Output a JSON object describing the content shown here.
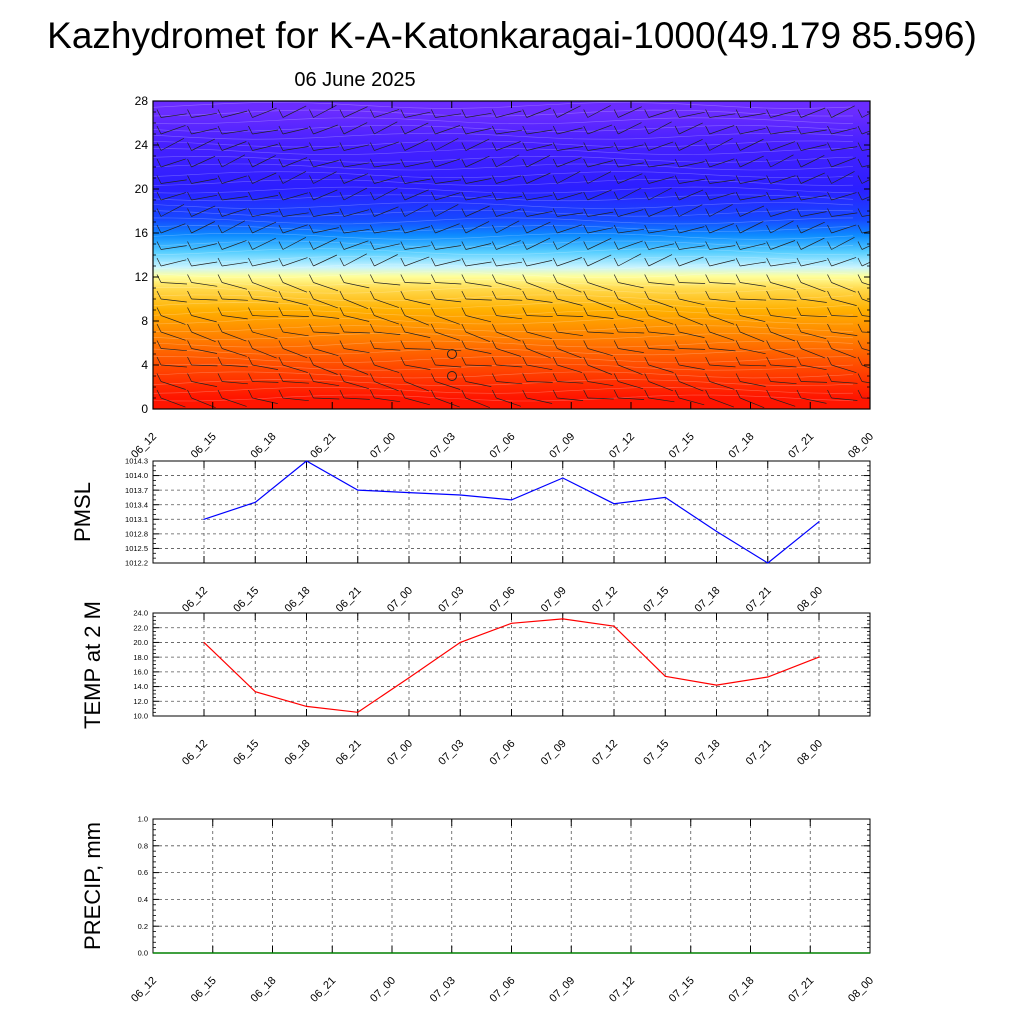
{
  "title": "Kazhydromet for K-A-Katonkaragai-1000(49.179 85.596)",
  "subtitle": "06 June 2025",
  "chart_data": [
    {
      "type": "heatmap",
      "name": "vertical-profile",
      "xlabel": "",
      "ylabel": "",
      "ylim": [
        0,
        28
      ],
      "yticks": [
        "0",
        "4",
        "8",
        "12",
        "16",
        "20",
        "24",
        "28"
      ],
      "categories": [
        "06_12",
        "06_15",
        "06_18",
        "06_21",
        "07_00",
        "07_03",
        "07_06",
        "07_09",
        "07_12",
        "07_15",
        "07_18",
        "07_21",
        "08_00"
      ],
      "colorbands": [
        "#ff1500",
        "#ff3a00",
        "#ff6000",
        "#ff8a00",
        "#ffb000",
        "#ffd84a",
        "#ffff9a",
        "#c8f4ff",
        "#58cfff",
        "#0d8cff",
        "#1648ff",
        "#2b1fff",
        "#4620ff",
        "#6a2cff"
      ],
      "grid": false
    },
    {
      "type": "line",
      "name": "pmsl",
      "ylabel": "PMSL",
      "ylim": [
        1012.2,
        1014.3
      ],
      "yticks": [
        "1012.2",
        "1012.5",
        "1012.8",
        "1013.1",
        "1013.4",
        "1013.7",
        "1014.0",
        "1014.3"
      ],
      "categories": [
        "06_12",
        "06_15",
        "06_18",
        "06_21",
        "07_00",
        "07_03",
        "07_06",
        "07_09",
        "07_12",
        "07_15",
        "07_18",
        "07_21",
        "08_00"
      ],
      "series": [
        {
          "values": [
            1013.1,
            1013.45,
            1014.3,
            1013.7,
            1013.65,
            1013.6,
            1013.5,
            1013.95,
            1013.42,
            1013.55,
            1012.85,
            1012.2,
            1013.05
          ],
          "color": "#0000ff"
        }
      ],
      "grid": true
    },
    {
      "type": "line",
      "name": "temp2m",
      "ylabel": "TEMP at 2 M",
      "ylim": [
        10.0,
        24.0
      ],
      "yticks": [
        "10.0",
        "12.0",
        "14.0",
        "16.0",
        "18.0",
        "20.0",
        "22.0",
        "24.0"
      ],
      "categories": [
        "06_12",
        "06_15",
        "06_18",
        "06_21",
        "07_00",
        "07_03",
        "07_06",
        "07_09",
        "07_12",
        "07_15",
        "07_18",
        "07_21",
        "08_00"
      ],
      "series": [
        {
          "values": [
            20.0,
            13.3,
            11.3,
            10.5,
            15.2,
            20.0,
            22.6,
            23.2,
            22.2,
            15.4,
            14.2,
            15.3,
            18.0
          ],
          "color": "#ff0000"
        }
      ],
      "grid": true
    },
    {
      "type": "bar",
      "name": "precip",
      "ylabel": "PRECIP, mm",
      "ylim": [
        0.0,
        1.0
      ],
      "yticks": [
        "0.0",
        "0.2",
        "0.4",
        "0.6",
        "0.8",
        "1.0"
      ],
      "categories": [
        "06_12",
        "06_15",
        "06_18",
        "06_21",
        "07_00",
        "07_03",
        "07_06",
        "07_09",
        "07_12",
        "07_15",
        "07_18",
        "07_21",
        "08_00"
      ],
      "values": [
        0,
        0,
        0,
        0,
        0,
        0,
        0,
        0,
        0,
        0,
        0,
        0,
        0
      ],
      "color": "#008000",
      "grid": true
    }
  ]
}
